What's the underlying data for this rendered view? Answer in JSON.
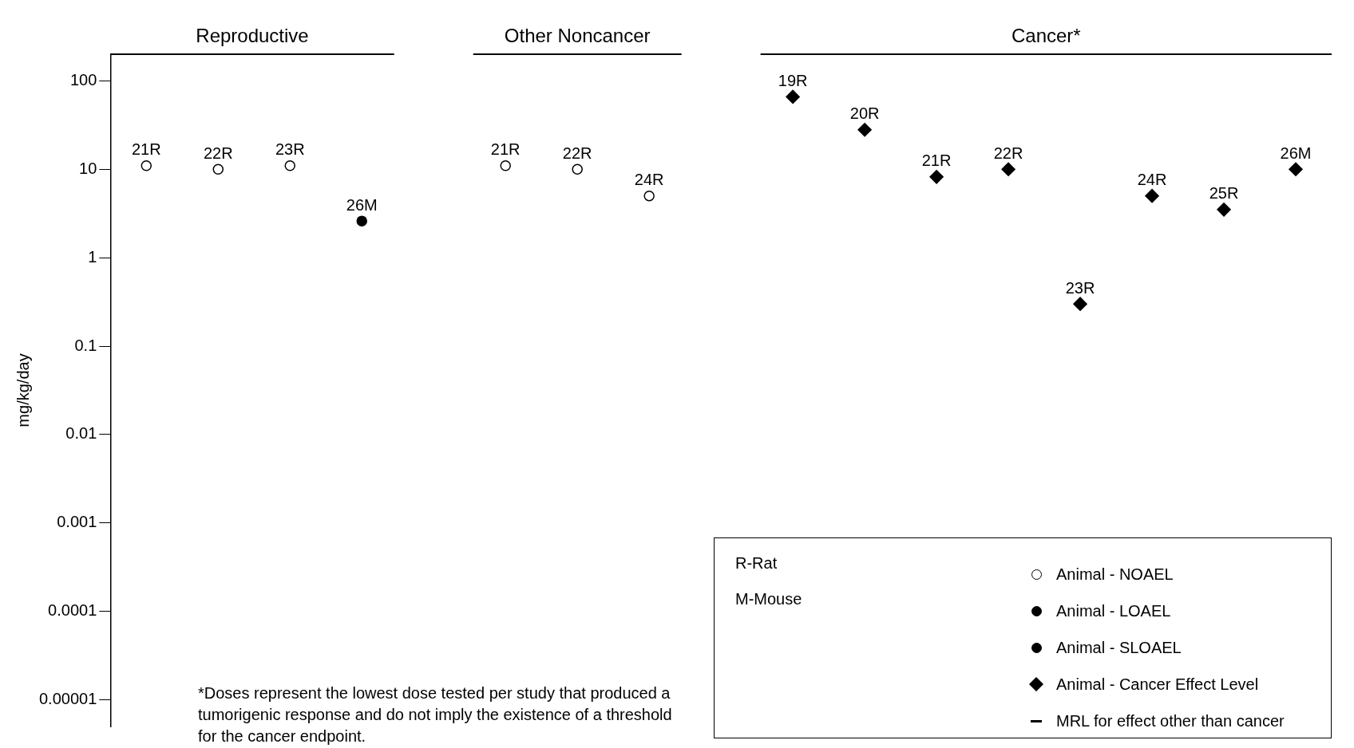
{
  "chart_data": {
    "type": "scatter",
    "ylabel": "mg/kg/day",
    "categories": [
      "21R",
      "22R",
      "23R",
      "26M",
      null,
      "21R",
      "22R",
      "24R",
      null,
      "19R",
      "20R",
      "21R",
      "22R",
      "23R",
      "24R",
      "25R",
      "26M"
    ],
    "log": "y",
    "ylim": [
      5e-06,
      200
    ],
    "yticks": [
      100,
      10,
      1,
      0.1,
      0.01,
      0.001,
      0.0001,
      {
        "value": 1e-05,
        "label": "0.00001"
      }
    ],
    "grid": false,
    "legend": "bottom right",
    "series": [
      {
        "name": "Animal - NOAEL",
        "color": "#ffffff",
        "marker": "circle",
        "values": [
          11,
          10,
          11,
          null,
          null,
          11,
          10,
          5,
          null,
          null,
          null,
          null,
          null,
          null,
          null,
          null,
          null
        ]
      },
      {
        "name": "Animal - LOAEL",
        "color": "#000000",
        "marker": "circle",
        "values": [
          null,
          null,
          null,
          2.6,
          null,
          null,
          null,
          null,
          null,
          null,
          null,
          null,
          null,
          null,
          null,
          null,
          null
        ]
      },
      {
        "name": "Animal - SLOAEL",
        "color": "#000000",
        "marker": "circle",
        "values": [
          null,
          null,
          null,
          null,
          null,
          null,
          null,
          null,
          null,
          null,
          null,
          null,
          null,
          null,
          null,
          null,
          null
        ]
      },
      {
        "name": "Animal - Cancer Effect Level",
        "color": "#000000",
        "marker": "diamond",
        "values": [
          null,
          null,
          null,
          null,
          null,
          null,
          null,
          null,
          null,
          66,
          28,
          8.2,
          10,
          0.3,
          5,
          3.5,
          10
        ]
      },
      {
        "name": "MRL for effect other than cancer",
        "type": "line",
        "color": "#000000",
        "marker": "none",
        "values": [
          null,
          null,
          null,
          null,
          null,
          null,
          null,
          null,
          null,
          null,
          null,
          null,
          null,
          null,
          null,
          null,
          null
        ]
      }
    ],
    "annotations": [
      "Reproductive",
      "Other Noncancer",
      "Cancer*",
      "*Doses represent the lowest dose tested per study that produced a tumorigenic response and do not imply the existence of a threshold for the cancer endpoint.",
      "R-Rat",
      "M-Mouse"
    ]
  }
}
